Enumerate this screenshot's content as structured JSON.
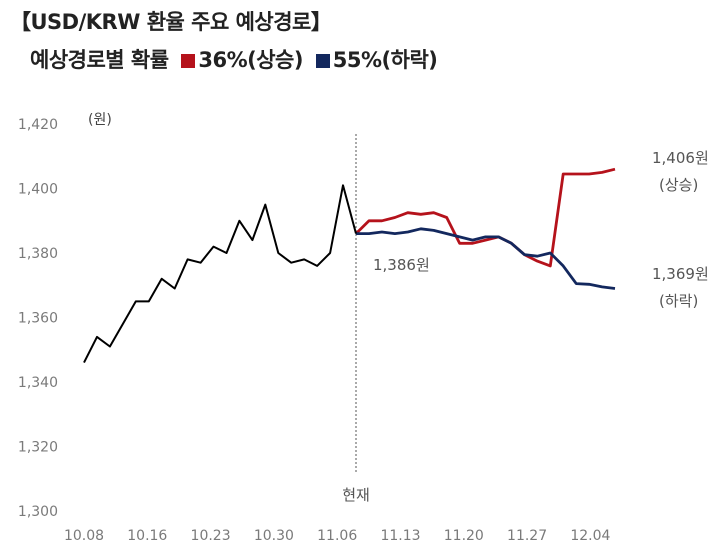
{
  "title": "【USD/KRW 환율 주요 예상경로】",
  "subtitle": {
    "prefix": "예상경로별 확률",
    "up_label": "36%(상승)",
    "down_label": "55%(하락)"
  },
  "colors": {
    "history": "#000000",
    "up": "#b5121b",
    "down": "#13285e",
    "now_line": "#555555"
  },
  "chart_data": {
    "type": "line",
    "ylabel": "(원)",
    "ylim": [
      1300,
      1420
    ],
    "yticks": [
      "1,300",
      "1,320",
      "1,340",
      "1,360",
      "1,380",
      "1,400",
      "1,420"
    ],
    "ytick_values": [
      1300,
      1320,
      1340,
      1360,
      1380,
      1400,
      1420
    ],
    "xticks": [
      "10.08",
      "10.16",
      "10.23",
      "10.30",
      "11.06",
      "11.13",
      "11.20",
      "11.27",
      "12.04"
    ],
    "now_label": "현재",
    "series": [
      {
        "key": "history",
        "values": [
          1346,
          1354,
          1351,
          1358,
          1365,
          1365,
          1372,
          1369,
          1378,
          1377,
          1382,
          1380,
          1390,
          1384,
          1395,
          1380,
          1377,
          1378,
          1376,
          1380,
          1401,
          1386
        ]
      },
      {
        "key": "up",
        "values": [
          1386,
          1390,
          1390,
          1391,
          1392.5,
          1392,
          1392.5,
          1391,
          1383,
          1383,
          1384,
          1385,
          1383,
          1379.5,
          1377.5,
          1376,
          1404.5,
          1404.5,
          1404.5,
          1405,
          1406
        ]
      },
      {
        "key": "down",
        "values": [
          1386,
          1386,
          1386.5,
          1386,
          1386.5,
          1387.5,
          1387,
          1386,
          1385,
          1384,
          1385,
          1385,
          1383,
          1379.5,
          1379,
          1380,
          1376,
          1370.5,
          1370.3,
          1369.5,
          1369
        ]
      }
    ],
    "annotations": {
      "current": "1,386원",
      "up_value": "1,406원",
      "up_tag": "(상승)",
      "down_value": "1,369원",
      "down_tag": "(하락)"
    }
  }
}
